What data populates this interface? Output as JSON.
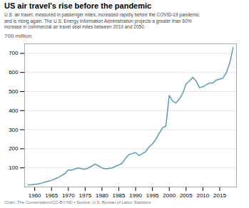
{
  "chart_data": {
    "type": "line",
    "title": "US air travel's rise before the pandemic",
    "subtitle": "U.S. air travel, measured in passenger miles, increased rapidly before the COVID-19 pandemic\nand is rising again. The U.S. Energy Information Administration projects a greater than 60%\nincrease in commercial air travel seat miles between 2019 and 2050.",
    "footer": "Chart: The Conversation/CC-BY-ND  •  Source: U.S. Bureau of Labor Statistics",
    "ylabel": "700 million",
    "color": "#5b9bb5",
    "x": [
      1958,
      1959,
      1960,
      1961,
      1962,
      1963,
      1964,
      1965,
      1966,
      1967,
      1968,
      1969,
      1970,
      1971,
      1972,
      1973,
      1974,
      1975,
      1976,
      1977,
      1978,
      1979,
      1980,
      1981,
      1982,
      1983,
      1984,
      1985,
      1986,
      1987,
      1988,
      1989,
      1990,
      1991,
      1992,
      1993,
      1994,
      1995,
      1996,
      1997,
      1998,
      1999,
      2000,
      2001,
      2002,
      2003,
      2004,
      2005,
      2006,
      2007,
      2008,
      2009,
      2010,
      2011,
      2012,
      2013,
      2014,
      2015,
      2016,
      2017,
      2018,
      2019
    ],
    "values": [
      10,
      12,
      14,
      16,
      20,
      25,
      30,
      35,
      42,
      50,
      60,
      70,
      90,
      88,
      95,
      100,
      95,
      93,
      100,
      110,
      120,
      110,
      100,
      95,
      97,
      100,
      108,
      115,
      125,
      150,
      170,
      175,
      180,
      165,
      175,
      185,
      210,
      225,
      250,
      280,
      310,
      320,
      480,
      450,
      440,
      460,
      490,
      540,
      555,
      575,
      555,
      520,
      525,
      535,
      545,
      545,
      560,
      565,
      570,
      600,
      650,
      730
    ],
    "xlim": [
      1957,
      2020
    ],
    "ylim": [
      0,
      750
    ],
    "xticks": [
      1960,
      1965,
      1970,
      1975,
      1980,
      1985,
      1990,
      1995,
      2000,
      2005,
      2010,
      2015
    ],
    "yticks": [
      100,
      200,
      300,
      400,
      500,
      600,
      700
    ],
    "grid": true
  }
}
